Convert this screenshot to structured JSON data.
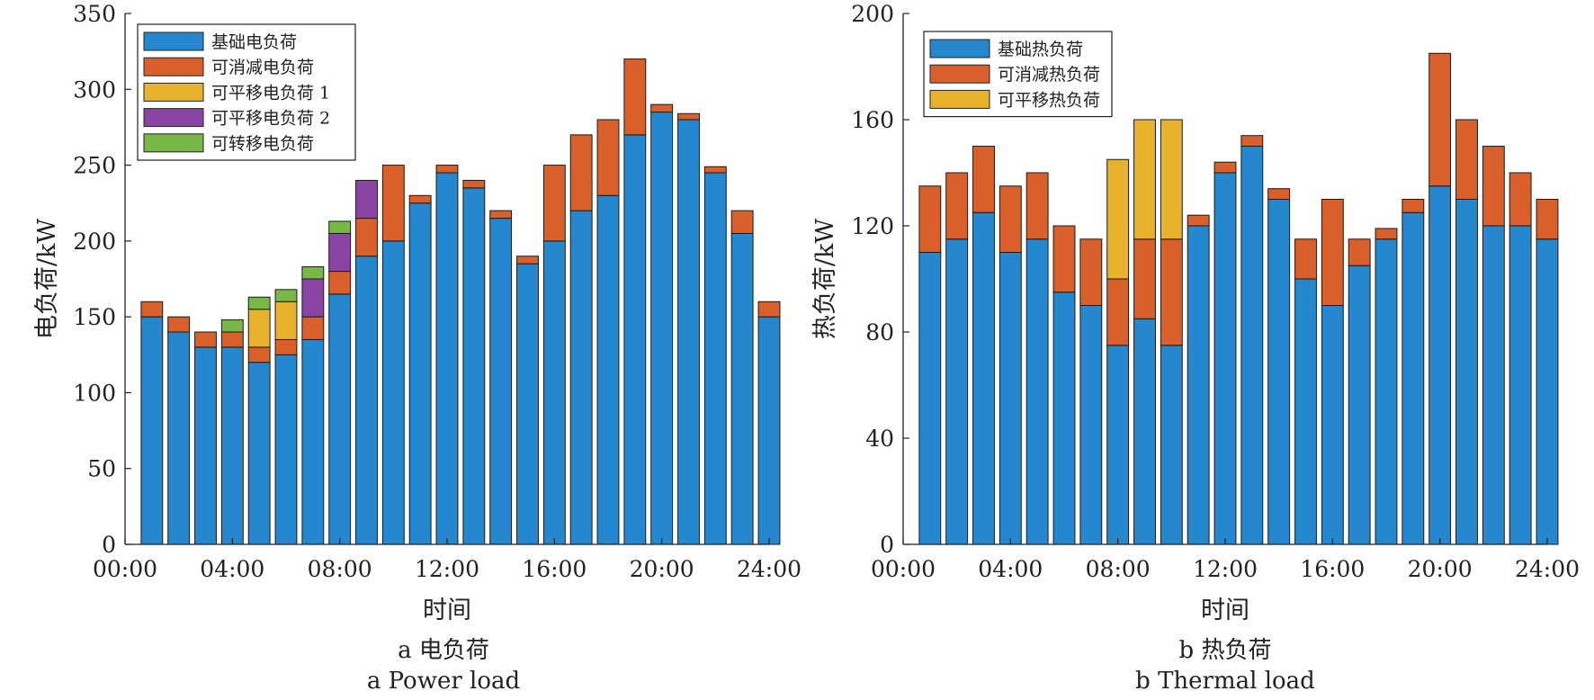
{
  "colors": {
    "blue": "#2588CE",
    "orange": "#D95F2B",
    "yellow": "#E8B22D",
    "purple": "#8A44A3",
    "green": "#77B847"
  },
  "chart_data": [
    {
      "type": "bar",
      "stacked": true,
      "xlabel": "时间",
      "ylabel": "电负荷/kW",
      "ylim": [
        0,
        350
      ],
      "yticks": [
        0,
        50,
        100,
        150,
        200,
        250,
        300,
        350
      ],
      "xticks": [
        "00:00",
        "04:00",
        "08:00",
        "12:00",
        "16:00",
        "20:00",
        "24:00"
      ],
      "x": [
        1,
        2,
        3,
        4,
        5,
        6,
        7,
        8,
        9,
        10,
        11,
        12,
        13,
        14,
        15,
        16,
        17,
        18,
        19,
        20,
        21,
        22,
        23,
        24
      ],
      "legend_position": "top-left",
      "grid": false,
      "caption_cn": "a 电负荷",
      "caption_en": "a Power load",
      "series": [
        {
          "name": "基础电负荷",
          "color": "#2588CE",
          "values": [
            150,
            140,
            130,
            130,
            120,
            125,
            135,
            165,
            190,
            200,
            225,
            245,
            235,
            215,
            185,
            200,
            220,
            230,
            270,
            285,
            280,
            245,
            205,
            150
          ]
        },
        {
          "name": "可消减电负荷",
          "color": "#D95F2B",
          "values": [
            10,
            10,
            10,
            10,
            10,
            10,
            15,
            15,
            25,
            50,
            5,
            5,
            5,
            5,
            5,
            50,
            50,
            50,
            50,
            5,
            4,
            4,
            15,
            10
          ]
        },
        {
          "name": "可平移电负荷 1",
          "color": "#E8B22D",
          "values": [
            0,
            0,
            0,
            0,
            25,
            25,
            0,
            0,
            0,
            0,
            0,
            0,
            0,
            0,
            0,
            0,
            0,
            0,
            0,
            0,
            0,
            0,
            0,
            0
          ]
        },
        {
          "name": "可平移电负荷 2",
          "color": "#8A44A3",
          "values": [
            0,
            0,
            0,
            0,
            0,
            0,
            25,
            25,
            25,
            0,
            0,
            0,
            0,
            0,
            0,
            0,
            0,
            0,
            0,
            0,
            0,
            0,
            0,
            0
          ]
        },
        {
          "name": "可转移电负荷",
          "color": "#77B847",
          "values": [
            0,
            0,
            0,
            8,
            8,
            8,
            8,
            8,
            0,
            0,
            0,
            0,
            0,
            0,
            0,
            0,
            0,
            0,
            0,
            0,
            0,
            0,
            0,
            0
          ]
        }
      ]
    },
    {
      "type": "bar",
      "stacked": true,
      "xlabel": "时间",
      "ylabel": "热负荷/kW",
      "ylim": [
        0,
        200
      ],
      "yticks": [
        0,
        40,
        80,
        120,
        160,
        200
      ],
      "xticks": [
        "00:00",
        "04:00",
        "08:00",
        "12:00",
        "16:00",
        "20:00",
        "24:00"
      ],
      "x": [
        1,
        2,
        3,
        4,
        5,
        6,
        7,
        8,
        9,
        10,
        11,
        12,
        13,
        14,
        15,
        16,
        17,
        18,
        19,
        20,
        21,
        22,
        23,
        24
      ],
      "legend_position": "top-left",
      "grid": false,
      "caption_cn": "b 热负荷",
      "caption_en": "b Thermal load",
      "series": [
        {
          "name": "基础热负荷",
          "color": "#2588CE",
          "values": [
            110,
            115,
            125,
            110,
            115,
            95,
            90,
            75,
            85,
            75,
            120,
            140,
            150,
            130,
            100,
            90,
            105,
            115,
            125,
            135,
            130,
            120,
            120,
            115
          ]
        },
        {
          "name": "可消减热负荷",
          "color": "#D95F2B",
          "values": [
            25,
            25,
            25,
            25,
            25,
            25,
            25,
            25,
            30,
            40,
            4,
            4,
            4,
            4,
            15,
            40,
            10,
            4,
            5,
            50,
            30,
            30,
            20,
            15
          ]
        },
        {
          "name": "可平移热负荷",
          "color": "#E8B22D",
          "values": [
            0,
            0,
            0,
            0,
            0,
            0,
            0,
            45,
            45,
            45,
            0,
            0,
            0,
            0,
            0,
            0,
            0,
            0,
            0,
            0,
            0,
            0,
            0,
            0
          ]
        }
      ]
    }
  ]
}
